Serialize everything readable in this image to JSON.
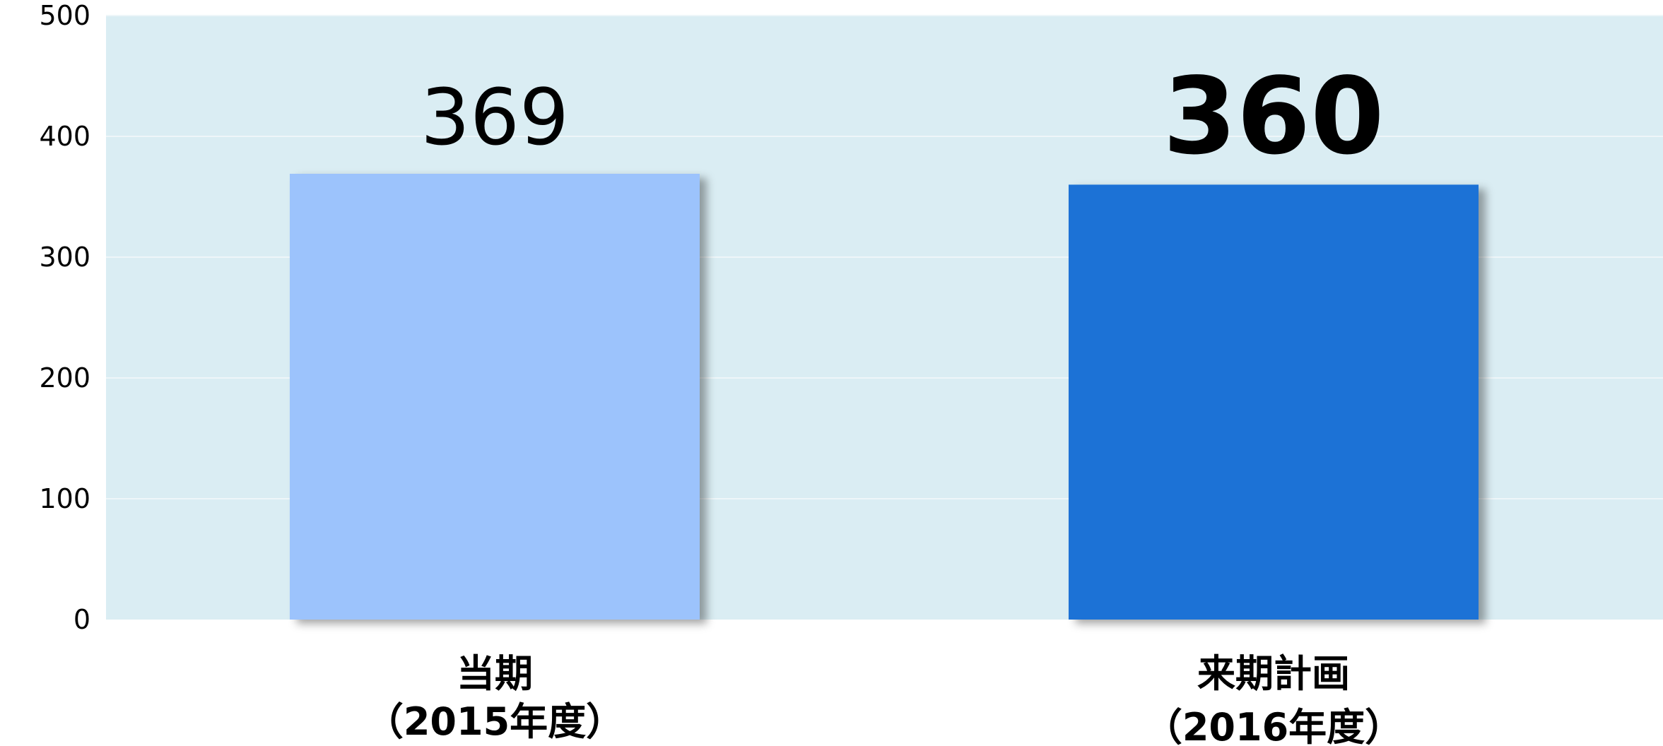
{
  "chart_data": {
    "type": "bar",
    "categories": [
      [
        "当期",
        "（2015年度）"
      ],
      [
        "来期計画",
        "（2016年度）"
      ]
    ],
    "values": [
      369,
      360
    ],
    "value_labels": [
      "369",
      "360"
    ],
    "bar_colors": [
      "#9cc3fc",
      "#1a72d6"
    ],
    "value_label_bold": [
      false,
      true
    ],
    "ylim": [
      0,
      500
    ],
    "yticks": [
      0,
      100,
      200,
      300,
      400,
      500
    ],
    "ytick_labels": [
      "0",
      "100",
      "200",
      "300",
      "400",
      "500"
    ],
    "grid": true,
    "plot_background": "#daedf3",
    "gridline_color": "#eef6f9",
    "title": "",
    "xlabel": "",
    "ylabel": ""
  }
}
